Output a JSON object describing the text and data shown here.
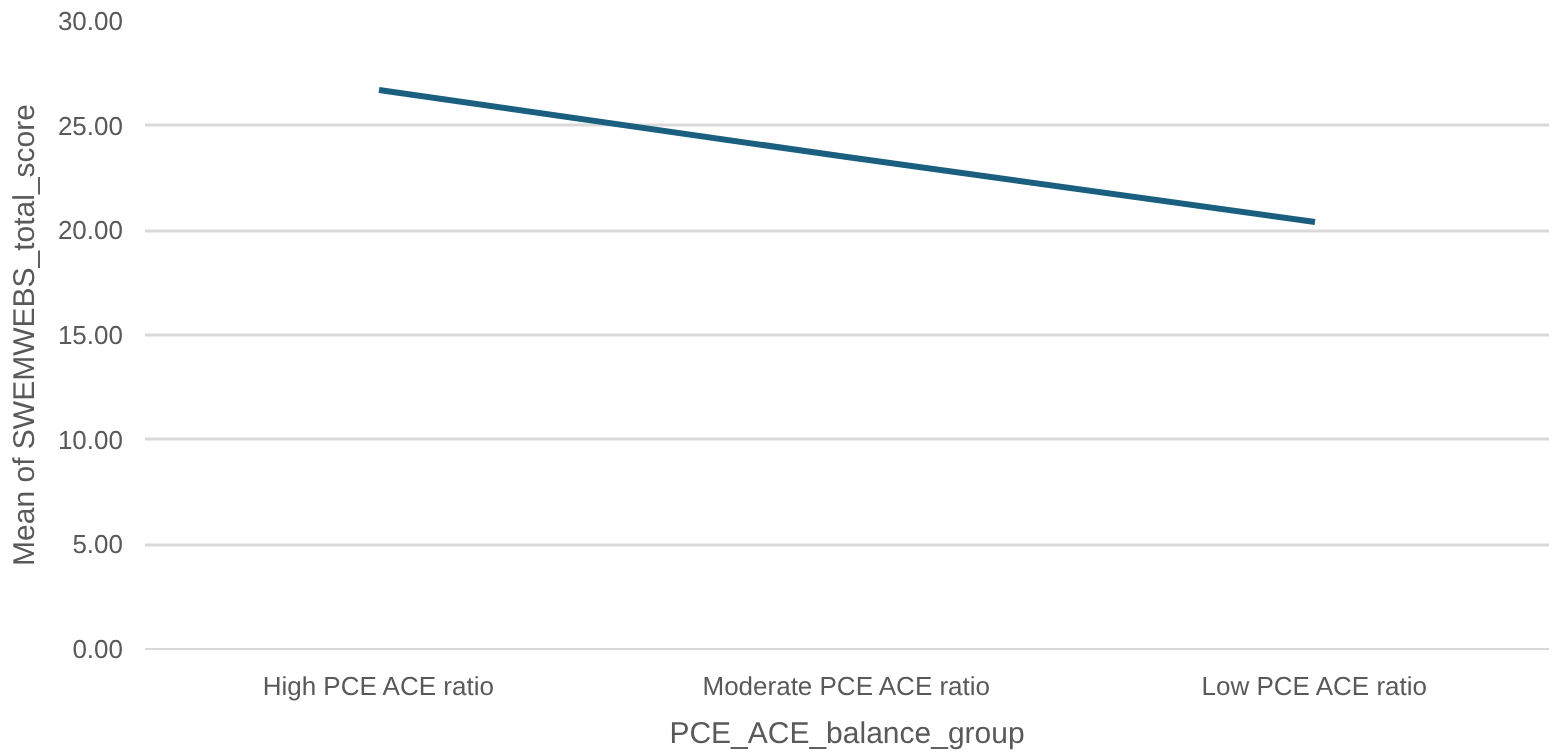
{
  "chart_data": {
    "type": "line",
    "xlabel": "PCE_ACE_balance_group",
    "ylabel": "Mean of SWEMWEBS_total_score",
    "categories": [
      "High PCE ACE ratio",
      "Moderate PCE ACE ratio",
      "Low PCE ACE ratio"
    ],
    "series": [
      {
        "color": "#1a5f80",
        "values": [
          26.7,
          23.5,
          20.4
        ]
      }
    ],
    "ylim": [
      0,
      30
    ],
    "yticks": [
      {
        "value": 0,
        "label": "0.00"
      },
      {
        "value": 5,
        "label": "5.00"
      },
      {
        "value": 10,
        "label": "10.00"
      },
      {
        "value": 15,
        "label": "15.00"
      },
      {
        "value": 20,
        "label": "20.00"
      },
      {
        "value": 25,
        "label": "25.00"
      },
      {
        "value": 30,
        "label": "30.00"
      }
    ],
    "grid": "y",
    "marker": "none",
    "line_style": "solid"
  }
}
